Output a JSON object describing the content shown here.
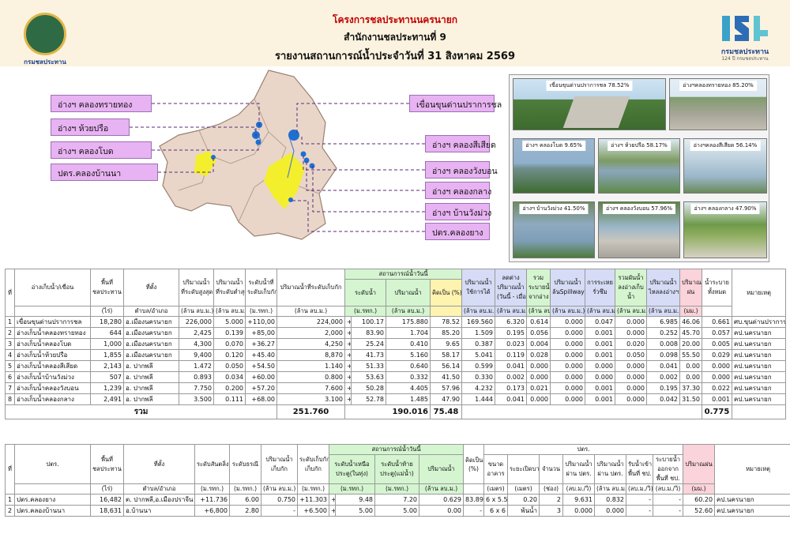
{
  "header": {
    "title1": "โครงการชลประทานนครนายก",
    "title2": "สำนักงานชลประทานที่ 9",
    "title3": "รายงานสถานการณ์น้ำประจำวันที่ 31  สิงหาคม  2569",
    "logo_caption": "กรมชลประทาน",
    "right_logo_caption": "กรมชลประทาน",
    "right_logo_sub": "124 ปี กรมชลประทาน"
  },
  "map_labels": {
    "l1": "อ่างฯ คลองทรายทอง",
    "l2": "อ่างฯ ห้วยปรือ",
    "l3": "อ่างฯ คลองโบด",
    "l4": "ปตร.คลองบ้านนา",
    "r1": "เขื่อนขุนด่านปราการชล",
    "r2": "อ่างฯ คลองสีเสียด",
    "r3": "อ่างฯ คลองวังบอน",
    "r4": "อ่างฯ คลองกลาง",
    "r5": "อ่างฯ บ้านวังม่วง",
    "r6": "ปตร.คลองยาง"
  },
  "photos": [
    "เขื่อนขุนด่านปราการชล  78.52%",
    "อ่างฯคลองทรายทอง 85.20%",
    "อ่างฯ คลองโบด 9.65%",
    "อ่างฯ ห้วยปรือ 58.17%",
    "อ่างฯคลองสีเสียด 56.14%",
    "อ่างฯ บ้านวังม่วง 41.50%",
    "อ่างฯ คลองวังบอน 57.96%",
    "อ่างฯ คลองกลาง 47.90%"
  ],
  "t1_head": {
    "no": "ที่",
    "name": "อ่างเก็บน้ำ/เขื่อน",
    "area": "พื้นที่\nชลประทาน",
    "area_u": "(ไร่)",
    "loc": "ที่ตั้ง",
    "loc_u": "ตำบล/อำเภอ",
    "cap_max": "ปริมาณน้ำ\nที่ระดับสูงสุด",
    "cap_max_u": "(ล้าน ลบ.ม.)",
    "cap_min": "ปริมาณน้ำ\nที่ระดับต่ำสุด",
    "cap_min_u": "(ล้าน ลบ.ม.)",
    "lvl_store": "ระดับน้ำที่\nระดับเก็บกัก",
    "lvl_store_u": "(ม.รทก.)",
    "cap_store": "ปริมาณน้ำที่ระดับเก็บกัก",
    "cap_store_u": "(ล้าน ลบ.ม.)",
    "status": "สถานการณ์น้ำวันนี้",
    "lvl": "ระดับน้ำ",
    "lvl_u": "(ม.รทก.)",
    "vol": "ปริมาณน้ำ",
    "vol_u": "(ล้าน ลบ.ม.)",
    "pct": "คิดเป็น (%)",
    "usable": "ปริมาณน้ำ\nใช้การได้",
    "usable_u": "(ล้าน ลบ.ม.)",
    "diff": "ลดต่าง\nปริมาณน้ำ\n(วันนี้ - เมื่อวาน)",
    "diff_u": "(ล้าน ลบ.ม.)",
    "inflow": "รวม\nระบายน้ำ\nจากอ่าง",
    "inflow_u": "(ล้าน ลบ.ม.)",
    "spill": "ปริมาณน้ำ\nล้นSpillway",
    "spill_u": "(ล้าน ลบ.ม.)",
    "evap": "การระเหย\nรั่วซึม",
    "evap_u": "(ล้าน ลบ.ม.)",
    "rel": "รวมผันน้ำ\nลงอ่างเก็บ\nน้ำ",
    "rel_u": "(ล้าน ลบ.ม.)",
    "into": "ปริมาณน้ำ\nไหลลงอ่างฯ",
    "into_u": "(ล้าน ลบ.ม.)",
    "rain": "ปริมาณ\nฝน",
    "rain_u": "(มม.)",
    "total": "น้ำระบาย\nทั้งหมด",
    "note": "หมายเหตุ"
  },
  "t1_rows": [
    [
      "1",
      "เขื่อนขุนด่านปราการชล",
      "18,280",
      "อ.เมืองนครนายก",
      "226,000",
      "5.000",
      "+110,00",
      "224,000",
      "+",
      "100.17",
      "175.880",
      "78.52",
      "169.560",
      "6.320",
      "0.614",
      "0.000",
      "0.047",
      "0.000",
      "6.985",
      "46.06",
      "0.661",
      "ศบ.ขุนด่านปราการชล"
    ],
    [
      "2",
      "อ่างเก็บน้ำคลองทรายทอง",
      "644",
      "อ.เมืองนครนายก",
      "2,425",
      "0.139",
      "+85,00",
      "2,000",
      "+",
      "83.90",
      "1.704",
      "85.20",
      "1.509",
      "0.195",
      "0.056",
      "0.000",
      "0.001",
      "0.000",
      "0.252",
      "45.70",
      "0.057",
      "คป.นครนายก"
    ],
    [
      "3",
      "อ่างเก็บน้ำคลองโบด",
      "1,000",
      "อ.เมืองนครนายก",
      "4,300",
      "0.070",
      "+36.27",
      "4,250",
      "+",
      "25.24",
      "0.410",
      "9.65",
      "0.387",
      "0.023",
      "0.004",
      "0.000",
      "0.001",
      "0.020",
      "0.008",
      "20.00",
      "0.005",
      "คป.นครนายก"
    ],
    [
      "4",
      "อ่างเก็บน้ำห้วยปรือ",
      "1,855",
      "อ.เมืองนครนายก",
      "9,400",
      "0.120",
      "+45.40",
      "8,870",
      "+",
      "41.73",
      "5.160",
      "58.17",
      "5.041",
      "0.119",
      "0.028",
      "0.000",
      "0.001",
      "0.050",
      "0.098",
      "55.50",
      "0.029",
      "คป.นครนายก"
    ],
    [
      "5",
      "อ่างเก็บน้ำคลองสีเสียด",
      "2,143",
      "อ. ปากพลี",
      "1.472",
      "0.050",
      "+54.50",
      "1.140",
      "+",
      "51.33",
      "0.640",
      "56.14",
      "0.599",
      "0.041",
      "0.000",
      "0.000",
      "0.000",
      "0.000",
      "0.041",
      "0.00",
      "0.000",
      "คป.นครนายก"
    ],
    [
      "6",
      "อ่างเก็บน้ำบ้านวังม่วง",
      "507",
      "อ. ปากพลี",
      "0.893",
      "0.034",
      "+60.00",
      "0.800",
      "+",
      "53.63",
      "0.332",
      "41.50",
      "0.330",
      "0.002",
      "0.000",
      "0.000",
      "0.000",
      "0.000",
      "0.002",
      "0.00",
      "0.000",
      "คป.นครนายก"
    ],
    [
      "7",
      "อ่างเก็บน้ำคลองวังบอน",
      "1,239",
      "อ. ปากพลี",
      "7.750",
      "0.200",
      "+57.20",
      "7.600",
      "+",
      "50.28",
      "4.405",
      "57.96",
      "4.232",
      "0.173",
      "0.021",
      "0.000",
      "0.001",
      "0.000",
      "0.195",
      "37.30",
      "0.022",
      "คป.นครนายก"
    ],
    [
      "8",
      "อ่างเก็บน้ำคลองกลาง",
      "2,491",
      "อ. ปากพลี",
      "3.500",
      "0.111",
      "+68.00",
      "3.100",
      "+",
      "52.78",
      "1.485",
      "47.90",
      "1.444",
      "0.041",
      "0.000",
      "0.000",
      "0.001",
      "0.000",
      "0.042",
      "31.50",
      "0.001",
      "คป.นครนายก"
    ]
  ],
  "t1_sum": {
    "label": "รวม",
    "store": "251.760",
    "vol": "190.016",
    "pct": "75.48",
    "total": "0.775"
  },
  "t2_head": {
    "no": "ที่",
    "name": "ปตร.",
    "area": "พื้นที่\nชลประทาน",
    "area_u": "(ไร่)",
    "loc": "ที่ตั้ง",
    "loc_u": "ตำบล/อำเภอ",
    "crest": "ระดับสันตลิ่ง",
    "crest_u": "(ม.รทก.)",
    "sill": "ระดับธรณี",
    "sill_u": "(ม.รทก.)",
    "cap": "ปริมาณน้ำ\nเก็บกัก",
    "cap_u": "(ล้าน ลบ.ม.)",
    "lvl_store": "ระดับเก็บกัก\nเก็บกัก",
    "lvl_store_u": "(ม.รทก.)",
    "status": "สถานการณ์น้ำวันนี้",
    "up": "ระดับน้ำเหนือ\nประตู(ในทุ่ง)",
    "up_u": "(ม.รทก.)",
    "down": "ระดับน้ำท้าย\nประตู(แม่น้ำ)",
    "down_u": "(ม.รทก.)",
    "vol": "ปริมาณน้ำ",
    "vol_u": "(ล้าน ลบ.ม.)",
    "pct": "คิดเป็น\n(%)",
    "gate": "ปตร.",
    "size": "ขนาด\nอาคาร",
    "size_u": "(เมตร)",
    "open": "ระยะเปิดบาน",
    "open_u": "(เมตร)",
    "cnt": "จำนวน",
    "cnt_u": "(ช่อง)",
    "q1": "ปริมาณน้ำ\nผ่าน ปตร.",
    "q1_u": "(ลบ.ม./วิ)",
    "q2": "ปริมาณน้ำ\nผ่าน ปตร.",
    "q2_u": "(ล้าน ลบ.ม./วัน)",
    "in": "รับน้ำเข้า\nพื้นที่ ชป.",
    "in_u": "(ลบ.ม./วิ)",
    "out": "ระบายน้ำ\nออกจาก\nพื้นที่ ชป.",
    "out_u": "(ลบ.ม./วิ)",
    "rain": "ปริมาณฝน",
    "rain_u": "(มม.)",
    "note": "หมายเหตุ"
  },
  "t2_rows": [
    [
      "1",
      "ปตร.คลองยาง",
      "16,482",
      "ต. ปากพลี,อ.เมืองปราจีน",
      "+11.736",
      "6.00",
      "0.750",
      "+11.303",
      "+",
      "9.48",
      "7.20",
      "0.629",
      "83.89",
      "6 x 5.5",
      "0.20",
      "2",
      "9.631",
      "0.832",
      "-",
      "-",
      "60.20",
      "คป.นครนายก"
    ],
    [
      "2",
      "ปตร.คลองบ้านนา",
      "18,631",
      "อ.บ้านนา",
      "+6,800",
      "2.80",
      "-",
      "+6.500",
      "+",
      "5.00",
      "5.00",
      "0.00",
      "-",
      "6 x 6",
      "พ้นน้ำ",
      "3",
      "0.000",
      "0.000",
      "-",
      "-",
      "52.60",
      "คป.นครนายก"
    ]
  ]
}
